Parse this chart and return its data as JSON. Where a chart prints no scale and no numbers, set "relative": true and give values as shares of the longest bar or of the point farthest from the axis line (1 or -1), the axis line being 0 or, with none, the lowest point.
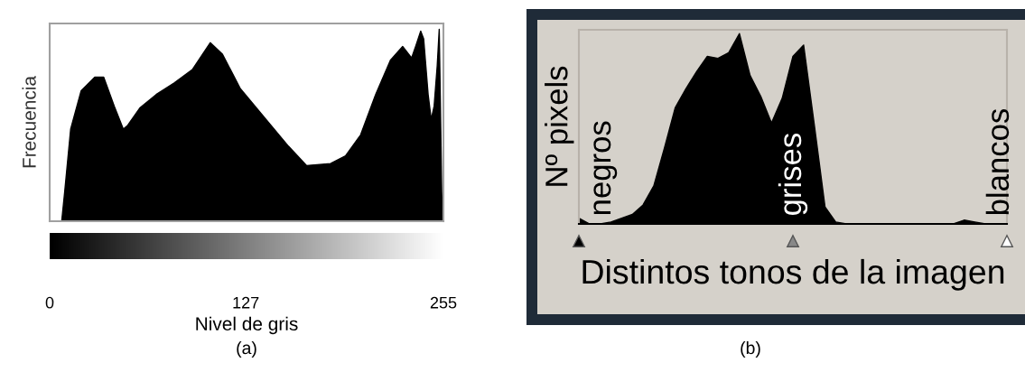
{
  "chart_data": [
    {
      "type": "area",
      "xlabel": "Nivel de gris",
      "ylabel": "Frecuencia",
      "relative": true,
      "color": "#000000",
      "x": [
        7.8,
        9.7,
        13.6,
        20.4,
        29.2,
        35,
        41.8,
        47.7,
        50.6,
        58.4,
        69,
        80.7,
        92.4,
        104,
        111.9,
        123.5,
        139.1,
        154.7,
        166.3,
        181.9,
        191.6,
        201.4,
        211.1,
        220.8,
        228.6,
        234.4,
        237.4,
        240.3,
        242.2,
        245.1,
        247.1,
        249,
        251,
        252.3,
        253.9,
        254.5
      ],
      "values": [
        0,
        0.15,
        0.48,
        0.68,
        0.75,
        0.75,
        0.6,
        0.48,
        0.5,
        0.59,
        0.66,
        0.72,
        0.79,
        0.93,
        0.87,
        0.69,
        0.54,
        0.39,
        0.29,
        0.3,
        0.34,
        0.45,
        0.66,
        0.84,
        0.91,
        0.85,
        0.92,
        0.99,
        0.95,
        0.66,
        0.53,
        0.6,
        0.81,
        1,
        0.15,
        0
      ],
      "xlim": [
        0,
        255
      ],
      "xticks": [
        0,
        127,
        255
      ],
      "tick_labels": "x",
      "annotations": [
        "(a)"
      ]
    },
    {
      "type": "area",
      "xlabel": "Distintos tonos de la imagen",
      "ylabel": "Nº pixels",
      "relative": true,
      "color": "#000000",
      "categories": [
        null,
        null,
        null,
        null,
        null,
        null,
        null,
        null,
        null,
        null,
        null,
        null,
        null,
        null,
        null,
        null,
        null,
        null,
        null,
        null,
        null,
        null,
        null,
        null,
        null,
        null,
        null,
        null,
        null,
        null,
        null,
        null,
        null,
        null,
        null,
        null,
        null,
        null,
        null,
        null,
        null
      ],
      "values": [
        0.03,
        0,
        0,
        0.01,
        0.03,
        0.05,
        0.1,
        0.2,
        0.4,
        0.61,
        0.71,
        0.8,
        0.88,
        0.87,
        0.9,
        1,
        0.78,
        0.67,
        0.53,
        0.66,
        0.88,
        0.94,
        0.52,
        0.09,
        0.01,
        0,
        0,
        0,
        0,
        0,
        0,
        0,
        0,
        0,
        0,
        0,
        0.02,
        0.01,
        0,
        0,
        0
      ],
      "tick_labels": false,
      "annotations": [
        "negros",
        "grises",
        "blancos",
        "(b)"
      ]
    }
  ]
}
